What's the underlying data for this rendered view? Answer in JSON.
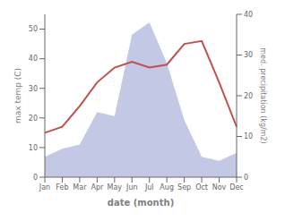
{
  "chart_data": {
    "type": "combo",
    "categories": [
      "Jan",
      "Feb",
      "Mar",
      "Apr",
      "May",
      "Jun",
      "Jul",
      "Aug",
      "Sep",
      "Oct",
      "Nov",
      "Dec"
    ],
    "series": [
      {
        "type": "area",
        "color": "#b8c0e0",
        "axis": "y2",
        "values": [
          5,
          7,
          8,
          16,
          15,
          35,
          38,
          28,
          14,
          5,
          4,
          6
        ]
      },
      {
        "type": "line",
        "color": "#c0504d",
        "values": [
          15,
          17,
          24,
          32,
          37,
          39,
          37,
          38,
          45,
          46,
          32,
          17
        ]
      }
    ],
    "xlabel": "date (month)",
    "ylabel": "max temp (C)",
    "y2label": "med. precipitation (kg/m2)",
    "ylim": [
      0,
      55
    ],
    "yticks": [
      0,
      10,
      20,
      30,
      40,
      50
    ],
    "y2lim": [
      0,
      40
    ],
    "y2ticks": [
      0,
      10,
      20,
      30,
      40
    ],
    "grid": false
  }
}
